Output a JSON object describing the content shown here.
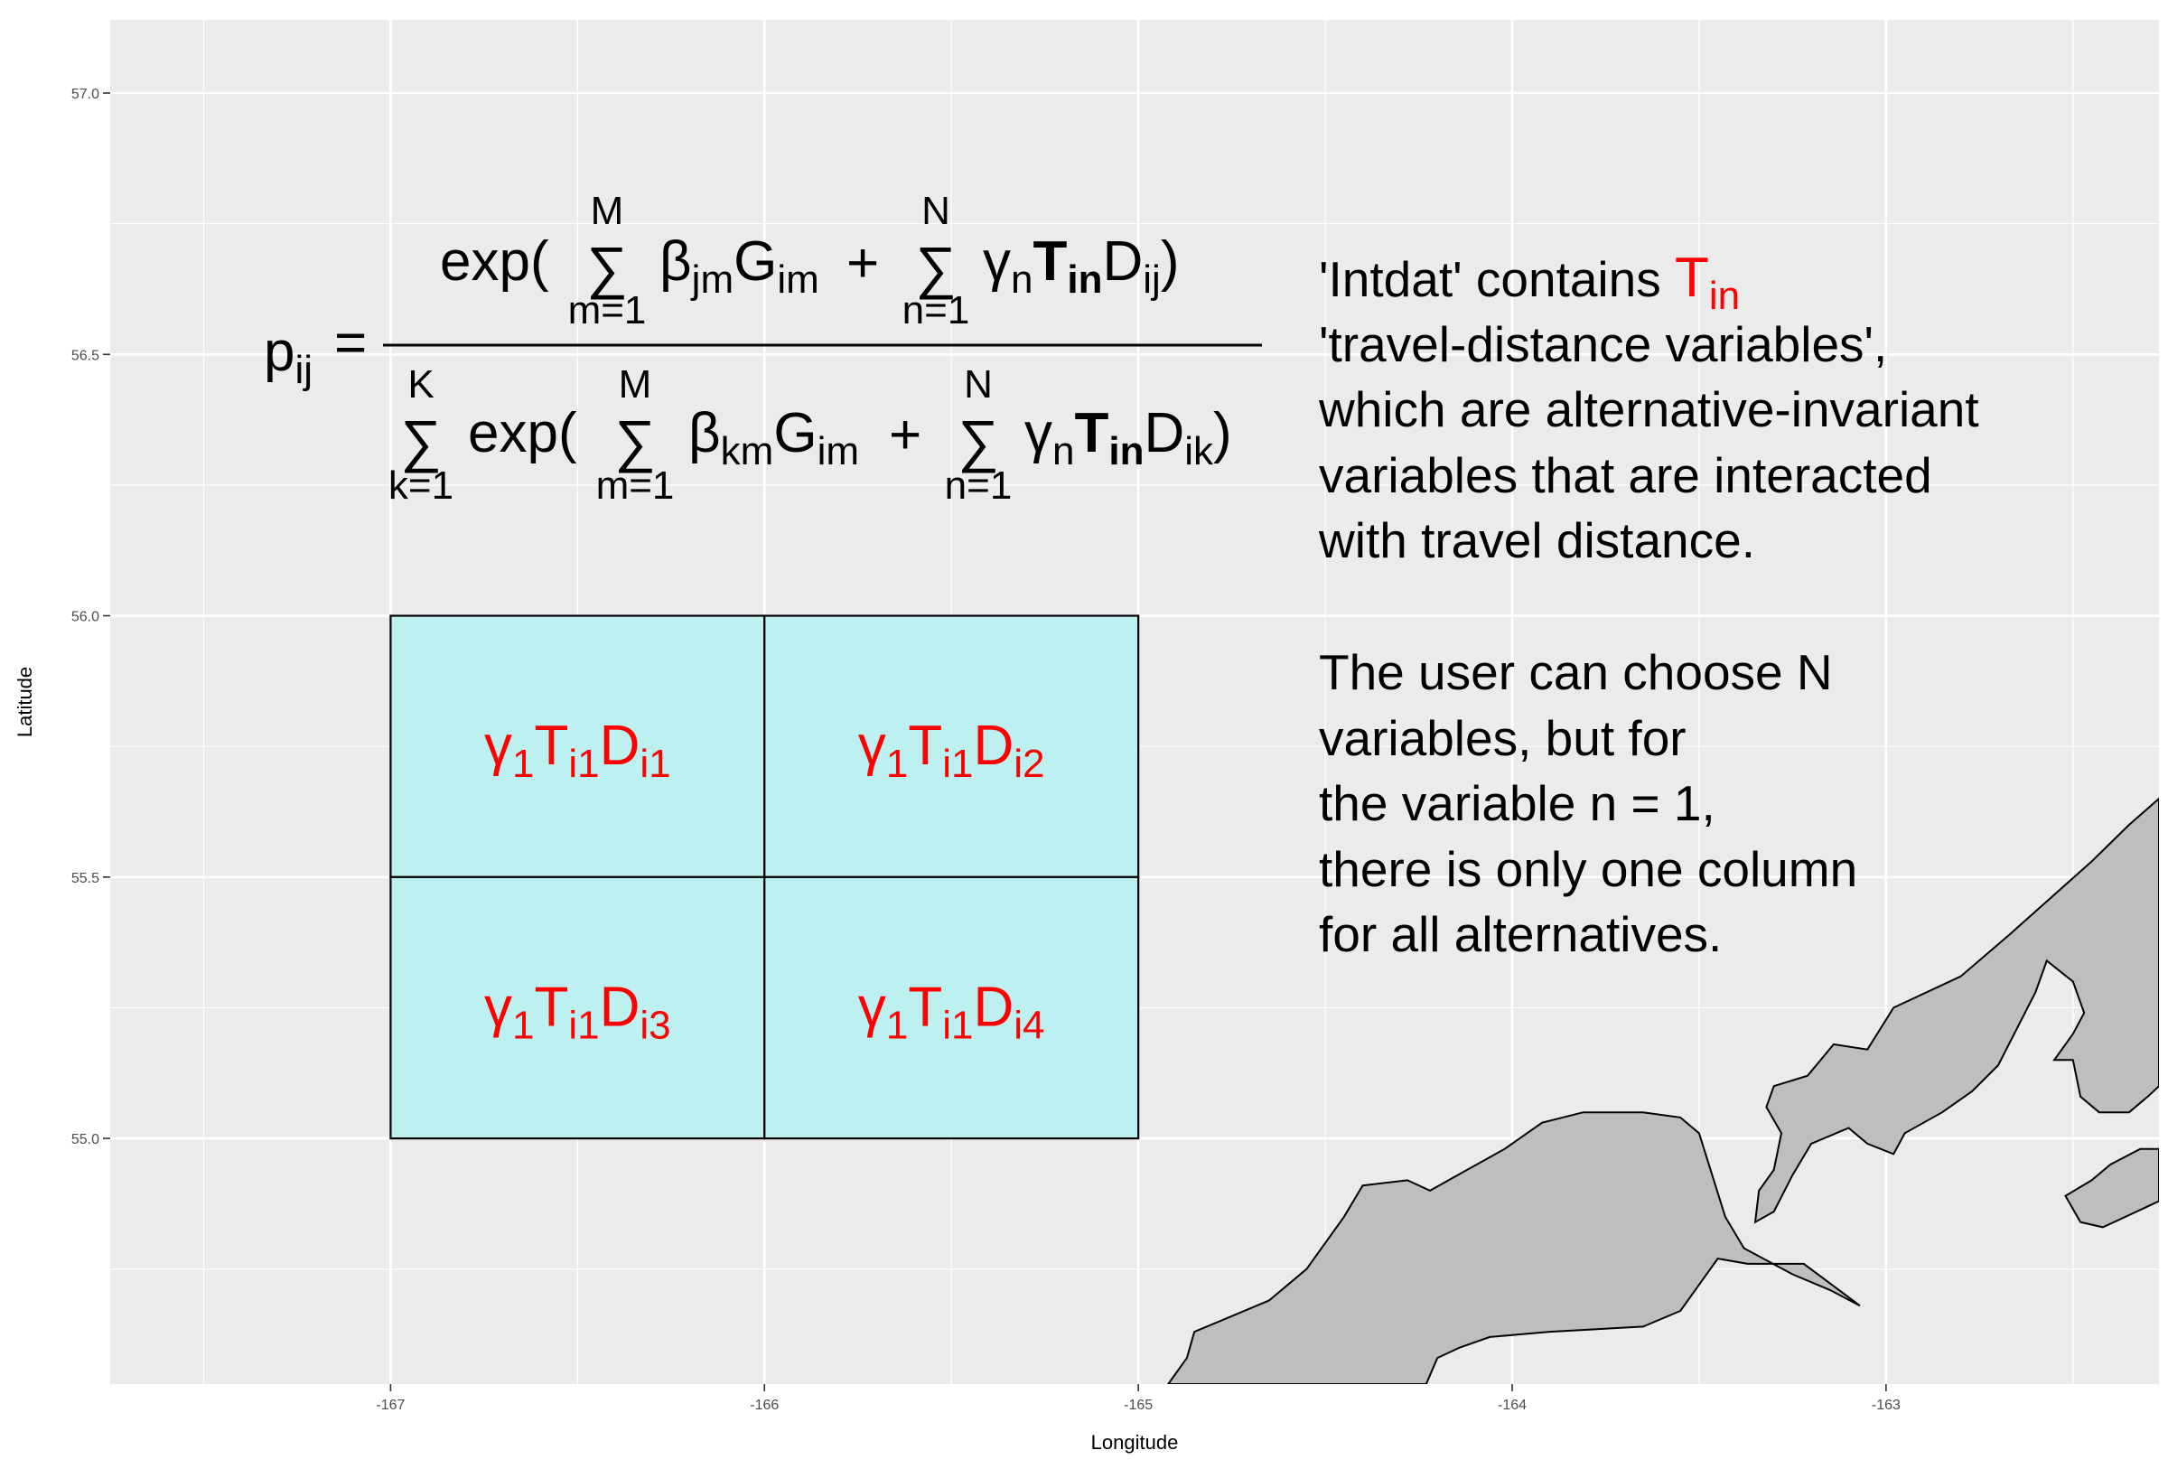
{
  "axes": {
    "xlabel": "Longitude",
    "ylabel": "Latitude",
    "x_ticks": [
      -167,
      -166,
      -165,
      -164,
      -163
    ],
    "x_tick_labels": [
      "-167",
      "-166",
      "-165",
      "-164",
      "-163"
    ],
    "y_ticks": [
      55.0,
      55.5,
      56.0,
      56.5,
      57.0
    ],
    "y_tick_labels": [
      "55.0",
      "55.5",
      "56.0",
      "56.5",
      "57.0"
    ],
    "xlim": [
      -167.75,
      -162.27
    ],
    "ylim": [
      54.53,
      57.14
    ]
  },
  "colors": {
    "panel_background": "#ebebeb",
    "grid": "#ffffff",
    "cell_fill": "#bdf0f0",
    "cell_text": "#ff0000",
    "land_fill": "#bebebe"
  },
  "grid_cells": [
    {
      "id": 1,
      "lon": [
        -167,
        -166
      ],
      "lat": [
        55.5,
        56.0
      ],
      "sub": "i1"
    },
    {
      "id": 2,
      "lon": [
        -166,
        -165
      ],
      "lat": [
        55.5,
        56.0
      ],
      "sub": "i2"
    },
    {
      "id": 3,
      "lon": [
        -167,
        -166
      ],
      "lat": [
        55.0,
        55.5
      ],
      "sub": "i3"
    },
    {
      "id": 4,
      "lon": [
        -166,
        -165
      ],
      "lat": [
        55.0,
        55.5
      ],
      "sub": "i4"
    }
  ],
  "cell_label": {
    "gamma": "γ",
    "gamma_sub": "1",
    "t": "T",
    "t_sub": "i1",
    "d": "D"
  },
  "formula": {
    "lhs": "p",
    "lhs_sub": "ij",
    "equals": "=",
    "exp": "exp(",
    "sum": "∑",
    "sum_lower_m": "m=1",
    "sum_upper_m": "M",
    "sum_lower_n": "n=1",
    "sum_upper_n": "N",
    "sum_lower_k": "k=1",
    "sum_upper_k": "K",
    "beta": "β",
    "beta_sub_num": "jm",
    "beta_sub_den": "km",
    "g": "G",
    "g_sub": "im",
    "plus": "+",
    "gamma": "γ",
    "gamma_sub": "n",
    "t": "T",
    "t_sub": "in",
    "d": "D",
    "d_sub_num": "ij",
    "d_sub_den": "ik",
    "close": ")"
  },
  "note": {
    "line1_prefix": "'Intdat' contains ",
    "line1_highlight": "T",
    "line1_highlight_sub": "in",
    "lines_a": [
      "'travel-distance variables',",
      "which are alternative-invariant",
      "variables that are interacted",
      "with travel distance."
    ],
    "lines_b": [
      "The user can choose N",
      "variables, but for",
      "the variable n = 1,",
      "there is only one column",
      "for all alternatives."
    ]
  },
  "land": [
    {
      "name": "coast-main",
      "points": [
        [
          -164.87,
          54.58
        ],
        [
          -164.85,
          54.63
        ],
        [
          -164.75,
          54.66
        ],
        [
          -164.65,
          54.69
        ],
        [
          -164.55,
          54.75
        ],
        [
          -164.45,
          54.85
        ],
        [
          -164.4,
          54.91
        ],
        [
          -164.28,
          54.92
        ],
        [
          -164.22,
          54.9
        ],
        [
          -164.12,
          54.94
        ],
        [
          -164.02,
          54.98
        ],
        [
          -163.92,
          55.03
        ],
        [
          -163.81,
          55.05
        ],
        [
          -163.65,
          55.05
        ],
        [
          -163.55,
          55.04
        ],
        [
          -163.5,
          55.01
        ],
        [
          -163.43,
          54.85
        ],
        [
          -163.38,
          54.79
        ],
        [
          -163.25,
          54.74
        ],
        [
          -163.15,
          54.71
        ],
        [
          -163.07,
          54.68
        ],
        [
          -163.22,
          54.76
        ],
        [
          -163.37,
          54.76
        ],
        [
          -163.45,
          54.77
        ],
        [
          -163.5,
          54.72
        ],
        [
          -163.55,
          54.67
        ],
        [
          -163.65,
          54.64
        ],
        [
          -163.9,
          54.63
        ],
        [
          -164.06,
          54.62
        ],
        [
          -164.14,
          54.6
        ],
        [
          -164.2,
          54.58
        ],
        [
          -164.23,
          54.53
        ],
        [
          -164.92,
          54.53
        ]
      ]
    },
    {
      "name": "coast-east",
      "points": [
        [
          -163.35,
          54.84
        ],
        [
          -163.34,
          54.9
        ],
        [
          -163.3,
          54.94
        ],
        [
          -163.28,
          55.01
        ],
        [
          -163.32,
          55.06
        ],
        [
          -163.3,
          55.1
        ],
        [
          -163.21,
          55.12
        ],
        [
          -163.14,
          55.18
        ],
        [
          -163.05,
          55.17
        ],
        [
          -162.98,
          55.25
        ],
        [
          -162.8,
          55.31
        ],
        [
          -162.67,
          55.39
        ],
        [
          -162.56,
          55.46
        ],
        [
          -162.45,
          55.53
        ],
        [
          -162.35,
          55.6
        ],
        [
          -162.27,
          55.65
        ],
        [
          -162.27,
          55.1
        ],
        [
          -162.3,
          55.08
        ],
        [
          -162.35,
          55.05
        ],
        [
          -162.43,
          55.05
        ],
        [
          -162.48,
          55.08
        ],
        [
          -162.5,
          55.15
        ],
        [
          -162.55,
          55.15
        ],
        [
          -162.5,
          55.2
        ],
        [
          -162.47,
          55.24
        ],
        [
          -162.5,
          55.3
        ],
        [
          -162.57,
          55.34
        ],
        [
          -162.6,
          55.28
        ],
        [
          -162.7,
          55.14
        ],
        [
          -162.77,
          55.09
        ],
        [
          -162.85,
          55.05
        ],
        [
          -162.95,
          55.01
        ],
        [
          -162.98,
          54.97
        ],
        [
          -163.05,
          54.99
        ],
        [
          -163.1,
          55.02
        ],
        [
          -163.2,
          54.99
        ],
        [
          -163.25,
          54.93
        ],
        [
          -163.3,
          54.86
        ]
      ]
    },
    {
      "name": "coast-island",
      "points": [
        [
          -162.4,
          54.95
        ],
        [
          -162.45,
          54.92
        ],
        [
          -162.52,
          54.89
        ],
        [
          -162.48,
          54.84
        ],
        [
          -162.42,
          54.83
        ],
        [
          -162.36,
          54.85
        ],
        [
          -162.3,
          54.87
        ],
        [
          -162.27,
          54.88
        ],
        [
          -162.27,
          54.98
        ],
        [
          -162.32,
          54.98
        ]
      ]
    }
  ]
}
